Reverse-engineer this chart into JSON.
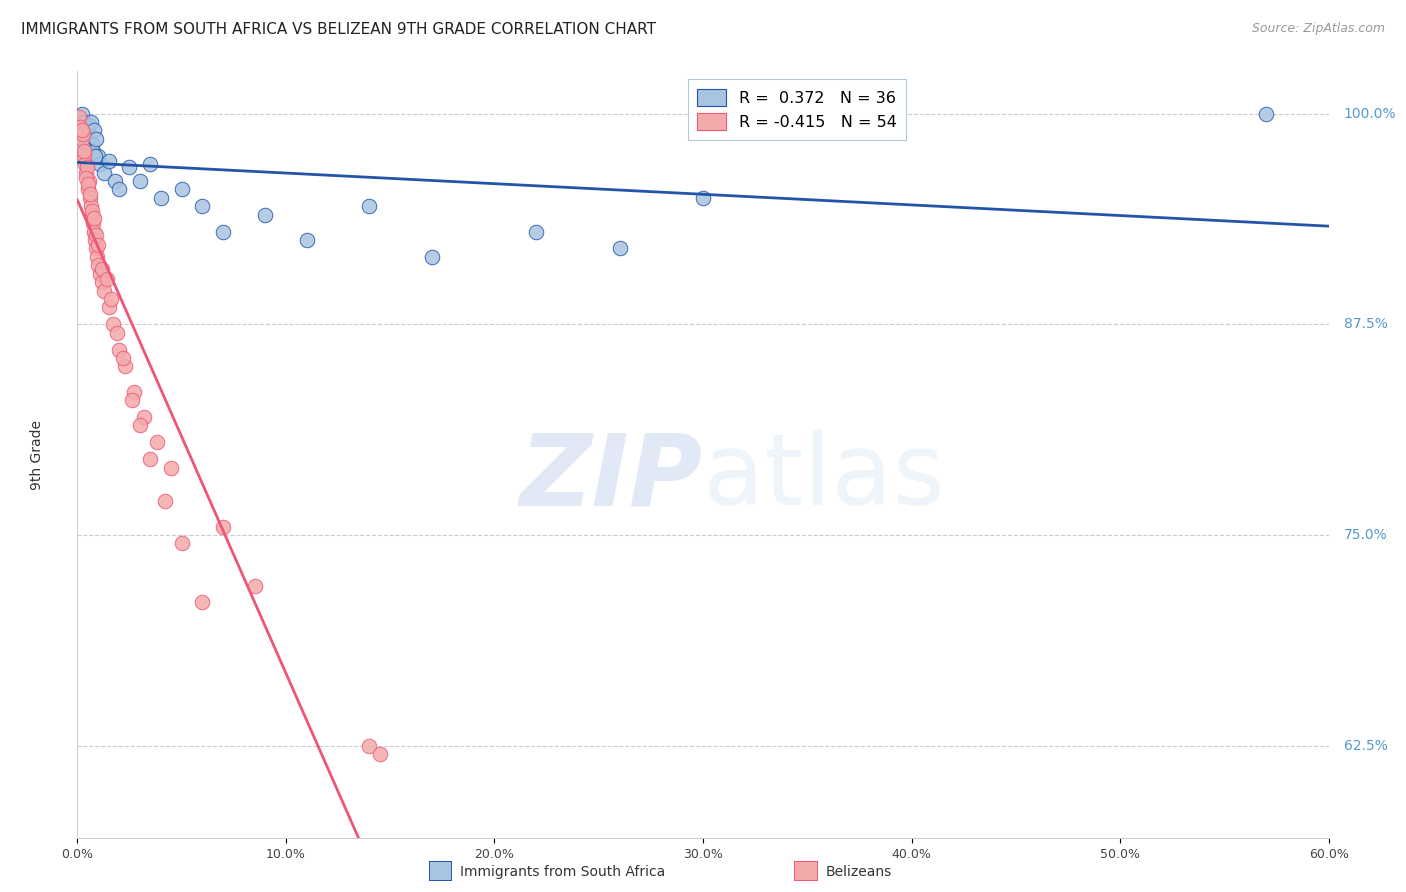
{
  "title": "IMMIGRANTS FROM SOUTH AFRICA VS BELIZEAN 9TH GRADE CORRELATION CHART",
  "source": "Source: ZipAtlas.com",
  "xlabel_vals": [
    0.0,
    10.0,
    20.0,
    30.0,
    40.0,
    50.0,
    60.0
  ],
  "ylabel_label": "9th Grade",
  "xlim": [
    0.0,
    60.0
  ],
  "ylim": [
    57.0,
    102.5
  ],
  "right_ytick_vals": [
    62.5,
    75.0,
    87.5,
    100.0
  ],
  "right_ytick_labels": [
    "62.5%",
    "75.0%",
    "87.5%",
    "100.0%"
  ],
  "blue_color": "#A8C4E0",
  "pink_color": "#F4AAAA",
  "blue_line_color": "#2255AA",
  "pink_line_color": "#EE5577",
  "legend_line1": "R =  0.372   N = 36",
  "legend_line2": "R = -0.415   N = 54",
  "legend_label_blue": "Immigrants from South Africa",
  "legend_label_pink": "Belizeans",
  "watermark_zip": "ZIP",
  "watermark_atlas": "atlas",
  "grid_color": "#CCCCCC",
  "background_color": "#FFFFFF",
  "title_fontsize": 11,
  "tick_fontsize": 9,
  "source_fontsize": 9,
  "blue_x": [
    0.2,
    0.3,
    0.35,
    0.4,
    0.45,
    0.5,
    0.55,
    0.6,
    0.65,
    0.7,
    0.75,
    0.8,
    0.9,
    1.0,
    1.1,
    1.3,
    1.5,
    1.8,
    2.0,
    2.5,
    3.0,
    3.5,
    4.0,
    5.0,
    6.0,
    7.0,
    9.0,
    11.0,
    14.0,
    17.0,
    22.0,
    26.0,
    30.0,
    57.0,
    0.25,
    0.85
  ],
  "blue_y": [
    100.0,
    99.5,
    99.0,
    99.2,
    98.8,
    98.5,
    99.3,
    98.0,
    99.5,
    98.2,
    97.8,
    99.0,
    98.5,
    97.5,
    97.0,
    96.5,
    97.2,
    96.0,
    95.5,
    96.8,
    96.0,
    97.0,
    95.0,
    95.5,
    94.5,
    93.0,
    94.0,
    92.5,
    94.5,
    91.5,
    93.0,
    92.0,
    95.0,
    100.0,
    98.0,
    97.5
  ],
  "pink_x": [
    0.1,
    0.15,
    0.2,
    0.25,
    0.3,
    0.35,
    0.4,
    0.45,
    0.5,
    0.55,
    0.6,
    0.65,
    0.7,
    0.75,
    0.8,
    0.85,
    0.9,
    0.95,
    1.0,
    1.1,
    1.2,
    1.3,
    1.5,
    1.7,
    2.0,
    2.3,
    2.7,
    3.2,
    3.8,
    4.5,
    0.2,
    0.3,
    0.4,
    0.5,
    0.6,
    0.7,
    0.8,
    0.9,
    1.0,
    1.2,
    1.4,
    1.6,
    1.9,
    2.2,
    2.6,
    3.0,
    3.5,
    4.2,
    5.0,
    6.0,
    7.0,
    8.5,
    14.0,
    14.5
  ],
  "pink_y": [
    99.8,
    99.2,
    98.5,
    98.8,
    97.5,
    97.0,
    96.5,
    96.8,
    95.5,
    96.0,
    95.0,
    94.5,
    94.0,
    93.5,
    93.0,
    92.5,
    92.0,
    91.5,
    91.0,
    90.5,
    90.0,
    89.5,
    88.5,
    87.5,
    86.0,
    85.0,
    83.5,
    82.0,
    80.5,
    79.0,
    99.0,
    97.8,
    96.2,
    95.8,
    95.2,
    94.2,
    93.8,
    92.8,
    92.2,
    90.8,
    90.2,
    89.0,
    87.0,
    85.5,
    83.0,
    81.5,
    79.5,
    77.0,
    74.5,
    71.0,
    75.5,
    72.0,
    62.5,
    62.0
  ],
  "pink_solid_end_x": 20.0,
  "pink_line_start_x": 0.0,
  "pink_line_end_x": 60.0
}
